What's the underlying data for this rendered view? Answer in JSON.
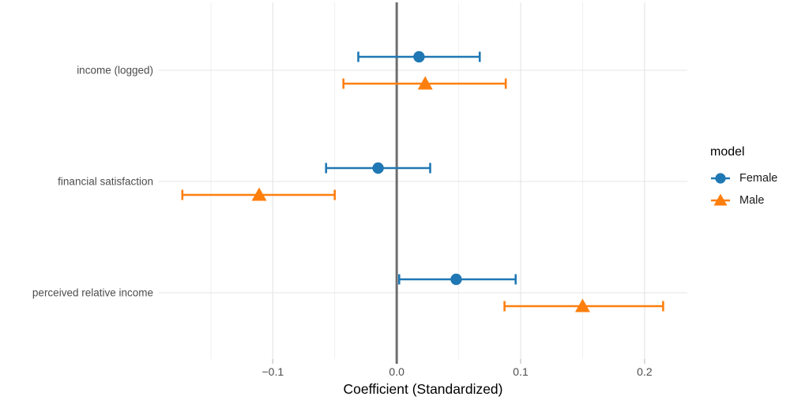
{
  "chart_data": {
    "type": "scatter",
    "subtype": "coefficient-dot-whisker",
    "title": "",
    "xlabel": "Coefficient (Standardized)",
    "ylabel": "",
    "categories": [
      "income (logged)",
      "financial satisfaction",
      "perceived relative income"
    ],
    "xlim": [
      -0.192,
      0.2345
    ],
    "x_ticks": [
      {
        "value": -0.1,
        "label": "−0.1"
      },
      {
        "value": 0.0,
        "label": "0.0"
      },
      {
        "value": 0.1,
        "label": "0.1"
      },
      {
        "value": 0.2,
        "label": "0.2"
      }
    ],
    "x_minor": [
      -0.15,
      -0.05,
      0.05,
      0.15
    ],
    "zero_line": 0,
    "grid": "on",
    "legend": {
      "title": "model",
      "position": "right",
      "entries": [
        {
          "label": "Female",
          "marker": "circle",
          "color": "#1f78b4"
        },
        {
          "label": "Male",
          "marker": "triangle",
          "color": "#ff7f0e"
        }
      ]
    },
    "series": [
      {
        "name": "Female",
        "marker": "circle",
        "color": "#1f78b4",
        "points": [
          {
            "category": "income (logged)",
            "estimate": 0.018,
            "lo": -0.031,
            "hi": 0.067
          },
          {
            "category": "financial satisfaction",
            "estimate": -0.015,
            "lo": -0.057,
            "hi": 0.027
          },
          {
            "category": "perceived relative income",
            "estimate": 0.048,
            "lo": 0.002,
            "hi": 0.096
          }
        ]
      },
      {
        "name": "Male",
        "marker": "triangle",
        "color": "#ff7f0e",
        "points": [
          {
            "category": "income (logged)",
            "estimate": 0.023,
            "lo": -0.043,
            "hi": 0.088
          },
          {
            "category": "financial satisfaction",
            "estimate": -0.111,
            "lo": -0.173,
            "hi": -0.05
          },
          {
            "category": "perceived relative income",
            "estimate": 0.15,
            "lo": 0.087,
            "hi": 0.215
          }
        ]
      }
    ],
    "colors": {
      "grid_major": "#e4e4e4",
      "grid_minor": "#f0f0f0",
      "zero_line": "#6e6e6e",
      "tick_mark": "#c9c9c9",
      "axis_text": "#4d4d4d"
    }
  }
}
